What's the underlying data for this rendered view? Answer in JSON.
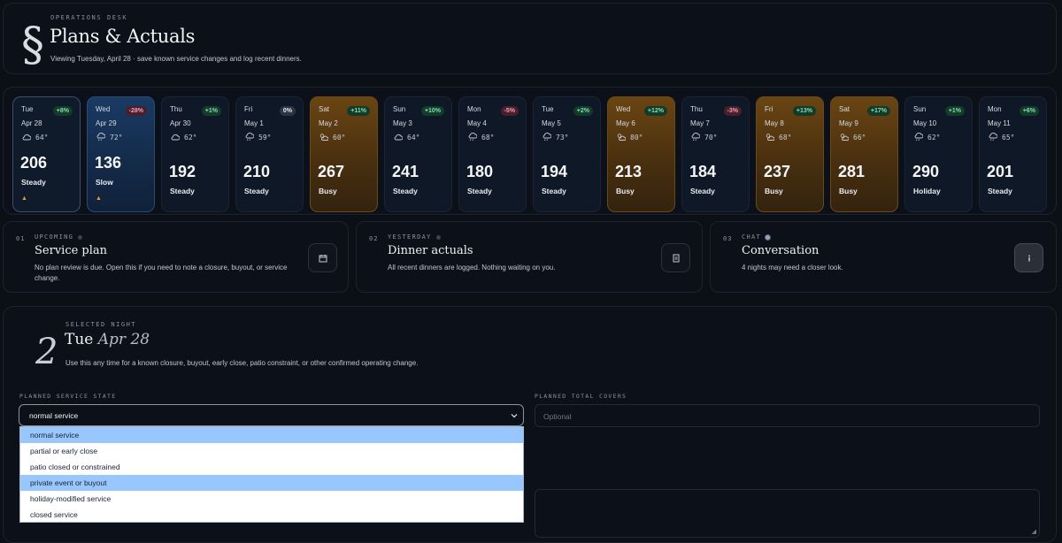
{
  "header": {
    "eyebrow": "OPERATIONS DESK",
    "logo": "§",
    "title": "Plans & Actuals",
    "subtitle": "Viewing Tuesday, April 28 · save known service changes and log recent dinners."
  },
  "days": [
    {
      "day": "Tue",
      "date": "Apr 28",
      "badge": "+8%",
      "trend": "up",
      "weather": "cloud",
      "temp": "64°",
      "covers": "206",
      "label": "Steady",
      "warn": "▲"
    },
    {
      "day": "Wed",
      "date": "Apr 29",
      "badge": "-28%",
      "trend": "down",
      "weather": "rain",
      "temp": "72°",
      "covers": "136",
      "label": "Slow",
      "warn": "▲"
    },
    {
      "day": "Thu",
      "date": "Apr 30",
      "badge": "+1%",
      "trend": "up",
      "weather": "cloud",
      "temp": "62°",
      "covers": "192",
      "label": "Steady"
    },
    {
      "day": "Fri",
      "date": "May 1",
      "badge": "0%",
      "trend": "flat",
      "weather": "rain",
      "temp": "59°",
      "covers": "210",
      "label": "Steady"
    },
    {
      "day": "Sat",
      "date": "May 2",
      "badge": "+11%",
      "trend": "up",
      "weather": "partly",
      "temp": "60°",
      "covers": "267",
      "label": "Busy"
    },
    {
      "day": "Sun",
      "date": "May 3",
      "badge": "+10%",
      "trend": "up",
      "weather": "cloud",
      "temp": "64°",
      "covers": "241",
      "label": "Steady"
    },
    {
      "day": "Mon",
      "date": "May 4",
      "badge": "-5%",
      "trend": "down",
      "weather": "rain",
      "temp": "68°",
      "covers": "180",
      "label": "Steady"
    },
    {
      "day": "Tue",
      "date": "May 5",
      "badge": "+2%",
      "trend": "up",
      "weather": "rain",
      "temp": "73°",
      "covers": "194",
      "label": "Steady"
    },
    {
      "day": "Wed",
      "date": "May 6",
      "badge": "+12%",
      "trend": "up",
      "weather": "partly",
      "temp": "80°",
      "covers": "213",
      "label": "Busy"
    },
    {
      "day": "Thu",
      "date": "May 7",
      "badge": "-3%",
      "trend": "down",
      "weather": "rain",
      "temp": "70°",
      "covers": "184",
      "label": "Steady"
    },
    {
      "day": "Fri",
      "date": "May 8",
      "badge": "+13%",
      "trend": "up",
      "weather": "partly",
      "temp": "68°",
      "covers": "237",
      "label": "Busy"
    },
    {
      "day": "Sat",
      "date": "May 9",
      "badge": "+17%",
      "trend": "up",
      "weather": "partly",
      "temp": "66°",
      "covers": "281",
      "label": "Busy"
    },
    {
      "day": "Sun",
      "date": "May 10",
      "badge": "+1%",
      "trend": "up",
      "weather": "rain",
      "temp": "62°",
      "covers": "290",
      "label": "Holiday"
    },
    {
      "day": "Mon",
      "date": "May 11",
      "badge": "+6%",
      "trend": "up",
      "weather": "rain",
      "temp": "65°",
      "covers": "201",
      "label": "Steady"
    }
  ],
  "panels": [
    {
      "num": "01",
      "eyebrow": "UPCOMING",
      "title": "Service plan",
      "desc": "No plan review is due. Open this if you need to note a closure, buyout, or service change.",
      "icon": "calendar-icon"
    },
    {
      "num": "02",
      "eyebrow": "YESTERDAY",
      "title": "Dinner actuals",
      "desc": "All recent dinners are logged. Nothing waiting on you.",
      "icon": "document-icon"
    },
    {
      "num": "03",
      "eyebrow": "CHAT",
      "title": "Conversation",
      "desc": "4 nights may need a closer look.",
      "icon": "info-icon"
    }
  ],
  "selected": {
    "eyebrow": "SELECTED NIGHT",
    "num": "2",
    "title_day": "Tue",
    "title_date": "Apr 28",
    "desc": "Use this any time for a known closure, buyout, early close, patio constraint, or other confirmed operating change.",
    "state_label": "PLANNED SERVICE STATE",
    "state_value": "normal service",
    "covers_label": "PLANNED TOTAL COVERS",
    "covers_placeholder": "Optional",
    "options": [
      "normal service",
      "partial or early close",
      "patio closed or constrained",
      "private event or buyout",
      "holiday-modified service",
      "closed service"
    ]
  },
  "colors": {
    "background": "#0b0f16",
    "busy": "#6a4512",
    "slow": "#1a3a64",
    "badge_up": "#7fe0b0",
    "badge_down": "#f0a0b4",
    "option_highlight": "#98c6ff"
  }
}
